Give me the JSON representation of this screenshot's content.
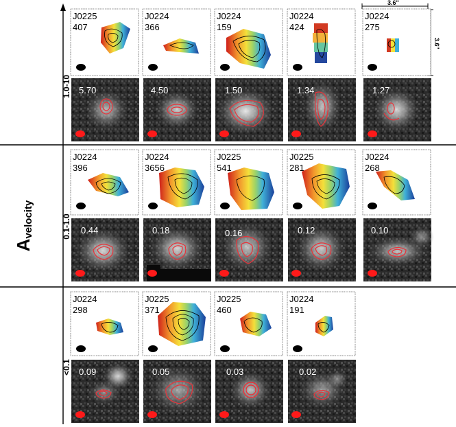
{
  "figure": {
    "y_axis_title": "A",
    "y_axis_subscript": "velocity",
    "scale_label_h": "3.6\"",
    "scale_label_v": "3.6\"",
    "groups": [
      {
        "label": "1.0-10",
        "galaxies": [
          {
            "field": "J0225",
            "id": "407",
            "value": "5.70"
          },
          {
            "field": "J0224",
            "id": "366",
            "value": "4.50"
          },
          {
            "field": "J0224",
            "id": "159",
            "value": "1.50"
          },
          {
            "field": "J0224",
            "id": "424",
            "value": "1.34"
          },
          {
            "field": "J0224",
            "id": "275",
            "value": "1.27"
          }
        ]
      },
      {
        "label": "0.1-1.0",
        "galaxies": [
          {
            "field": "J0224",
            "id": "396",
            "value": "0.44"
          },
          {
            "field": "J0224",
            "id": "3656",
            "value": "0.18"
          },
          {
            "field": "J0225",
            "id": "541",
            "value": "0.16"
          },
          {
            "field": "J0225",
            "id": "281",
            "value": "0.12"
          },
          {
            "field": "J0224",
            "id": "268",
            "value": "0.10"
          }
        ]
      },
      {
        "label": "<0.1",
        "galaxies": [
          {
            "field": "J0224",
            "id": "298",
            "value": "0.09"
          },
          {
            "field": "J0225",
            "id": "371",
            "value": "0.05"
          },
          {
            "field": "J0225",
            "id": "460",
            "value": "0.03"
          },
          {
            "field": "J0224",
            "id": "191",
            "value": "0.02"
          }
        ]
      }
    ]
  }
}
